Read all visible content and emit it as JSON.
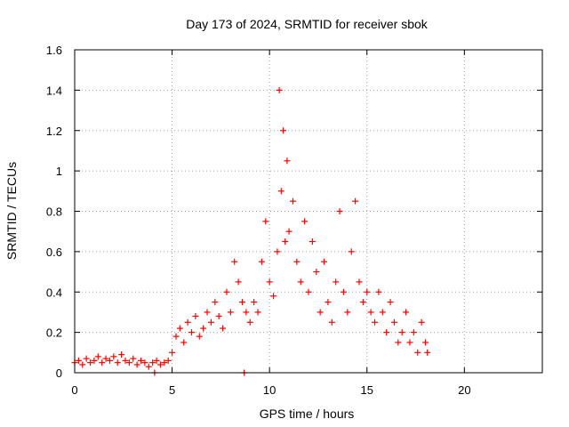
{
  "chart_data": {
    "type": "scatter",
    "title": "Day 173 of 2024, SRMTID for receiver sbok",
    "xlabel": "GPS time / hours",
    "ylabel": "SRMTID / TECUs",
    "xlim": [
      0,
      24
    ],
    "ylim": [
      0,
      1.6
    ],
    "x_ticks": [
      "0",
      "5",
      "10",
      "15",
      "20"
    ],
    "y_ticks": [
      "0",
      "0.2",
      "0.4",
      "0.6",
      "0.8",
      "1",
      "1.2",
      "1.4",
      "1.6"
    ],
    "grid": true,
    "marker": "+",
    "series": [
      {
        "name": "SRMTID",
        "color": "#ff0000",
        "x": [
          0.0,
          0.2,
          0.4,
          0.6,
          0.8,
          1.0,
          1.2,
          1.4,
          1.6,
          1.8,
          2.0,
          2.2,
          2.4,
          2.6,
          2.8,
          3.0,
          3.2,
          3.4,
          3.6,
          3.8,
          4.0,
          4.1,
          4.2,
          4.4,
          4.6,
          4.8,
          5.0,
          5.2,
          5.4,
          5.6,
          5.8,
          6.0,
          6.2,
          6.4,
          6.6,
          6.8,
          7.0,
          7.2,
          7.4,
          7.6,
          7.8,
          8.0,
          8.2,
          8.4,
          8.6,
          8.7,
          8.8,
          9.0,
          9.2,
          9.4,
          9.6,
          9.8,
          10.0,
          10.2,
          10.4,
          10.5,
          10.6,
          10.7,
          10.8,
          10.9,
          11.0,
          11.2,
          11.4,
          11.6,
          11.8,
          12.0,
          12.2,
          12.4,
          12.6,
          12.8,
          13.0,
          13.2,
          13.4,
          13.6,
          13.8,
          14.0,
          14.2,
          14.4,
          14.6,
          14.8,
          15.0,
          15.2,
          15.4,
          15.6,
          15.8,
          16.0,
          16.2,
          16.4,
          16.6,
          16.8,
          17.0,
          17.2,
          17.4,
          17.6,
          17.8,
          18.0,
          18.1
        ],
        "y": [
          0.05,
          0.06,
          0.04,
          0.07,
          0.05,
          0.06,
          0.08,
          0.05,
          0.07,
          0.06,
          0.08,
          0.05,
          0.09,
          0.06,
          0.05,
          0.07,
          0.04,
          0.06,
          0.05,
          0.03,
          0.05,
          0.0,
          0.06,
          0.04,
          0.05,
          0.06,
          0.1,
          0.18,
          0.22,
          0.15,
          0.25,
          0.2,
          0.28,
          0.18,
          0.22,
          0.3,
          0.25,
          0.35,
          0.28,
          0.22,
          0.4,
          0.3,
          0.55,
          0.45,
          0.35,
          0.0,
          0.3,
          0.25,
          0.35,
          0.3,
          0.55,
          0.75,
          0.45,
          0.38,
          0.6,
          1.4,
          0.9,
          1.2,
          0.65,
          1.05,
          0.7,
          0.85,
          0.55,
          0.45,
          0.75,
          0.4,
          0.65,
          0.5,
          0.3,
          0.55,
          0.35,
          0.25,
          0.45,
          0.8,
          0.4,
          0.3,
          0.6,
          0.85,
          0.45,
          0.35,
          0.4,
          0.3,
          0.25,
          0.4,
          0.3,
          0.2,
          0.35,
          0.25,
          0.15,
          0.2,
          0.3,
          0.15,
          0.2,
          0.1,
          0.25,
          0.15,
          0.1
        ]
      }
    ]
  }
}
